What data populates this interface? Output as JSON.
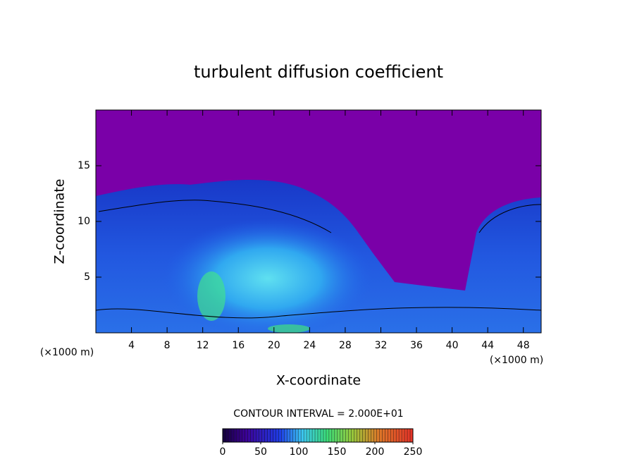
{
  "chart_data": {
    "type": "contour",
    "title": "turbulent diffusion coefficient",
    "x_label": "X-coordinate",
    "y_label": "Z-coordinate",
    "y_unit_label": "(×1000 m)",
    "x_unit_label": "(×1000 m)",
    "xlim": [
      0,
      50
    ],
    "xticks": [
      4,
      8,
      12,
      16,
      20,
      24,
      28,
      32,
      36,
      40,
      44,
      48
    ],
    "ylim": [
      0,
      20
    ],
    "yticks": [
      5,
      10,
      15
    ],
    "contour_interval_label": "CONTOUR INTERVAL = 2.000E+01",
    "colorbar": {
      "lim": [
        0,
        250
      ],
      "ticks": [
        0,
        50,
        100,
        150,
        200,
        250
      ]
    }
  }
}
